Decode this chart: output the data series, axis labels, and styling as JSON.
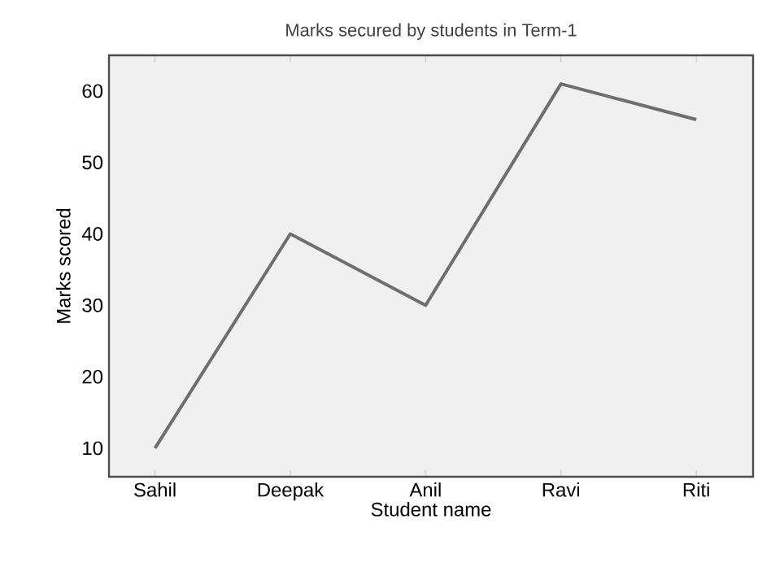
{
  "chart_data": {
    "type": "line",
    "title": "Marks secured by students in Term-1",
    "xlabel": "Student name",
    "ylabel": "Marks scored",
    "categories": [
      "Sahil",
      "Deepak",
      "Anil",
      "Ravi",
      "Riti"
    ],
    "values": [
      10,
      40,
      30,
      61,
      56
    ],
    "color": "#6e6e6e",
    "ylim": [
      6,
      65
    ],
    "yticks": [
      10,
      20,
      30,
      40,
      50,
      60
    ],
    "grid": false,
    "marker": "none",
    "line_style": "solid"
  }
}
